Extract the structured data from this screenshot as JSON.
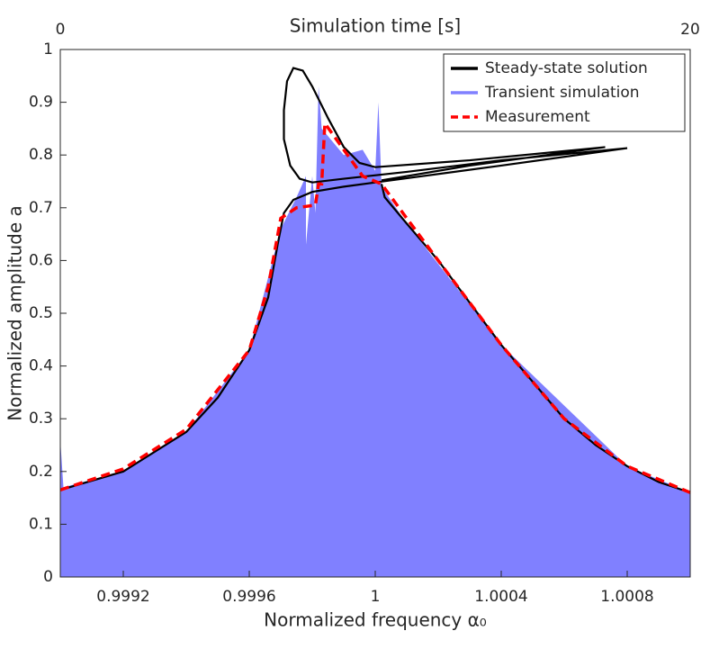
{
  "chart_data": {
    "type": "line",
    "title": "Simulation time [s]",
    "xlabel": "Normalized frequency α₀",
    "ylabel": "Normalized amplitude a",
    "xlim": [
      0.999,
      1.001
    ],
    "xticks": [
      0.9992,
      0.9996,
      1,
      1.0004,
      1.0008
    ],
    "ylim": [
      0,
      1
    ],
    "yticks": [
      0,
      0.1,
      0.2,
      0.3,
      0.4,
      0.5,
      0.6,
      0.7,
      0.8,
      0.9,
      1
    ],
    "x2lim": [
      0,
      20
    ],
    "x2ticks": [
      0,
      20
    ],
    "legend": "upper right",
    "series": [
      {
        "name": "Transient simulation",
        "color": "#8080ff",
        "fill": true,
        "x": [
          0.999,
          0.99901,
          0.9992,
          0.9994,
          0.9996,
          0.9997,
          0.99975,
          0.99978,
          0.99978,
          0.9998,
          0.99981,
          0.99982,
          0.99983,
          0.9999,
          0.99996,
          1.0,
          1.00001,
          1.00002,
          1.0001,
          1.0004,
          1.0008,
          1.001
        ],
        "values": [
          0.26,
          0.17,
          0.2,
          0.275,
          0.43,
          0.66,
          0.72,
          0.76,
          0.63,
          0.76,
          0.69,
          0.93,
          0.85,
          0.8,
          0.81,
          0.77,
          0.9,
          0.74,
          0.67,
          0.44,
          0.21,
          0.16
        ]
      },
      {
        "name": "Steady-state solution",
        "color": "#000000",
        "x": [
          0.999,
          0.9992,
          0.9994,
          0.9995,
          0.9996,
          0.99966,
          0.99969,
          0.99971,
          0.99974,
          0.9998,
          0.9999,
          1.0,
          1.0004,
          1.0008,
          1.0004,
          1.0001,
          0.9999,
          0.9998,
          0.99976,
          0.99973,
          0.99971,
          0.99971,
          0.99972,
          0.99974,
          0.99977,
          0.9998,
          0.99985,
          0.9999,
          0.99995,
          1.0,
          1.0003,
          1.00073,
          1.0003,
          1.00002,
          null,
          1.00002,
          1.00003,
          1.0001,
          1.0002,
          1.0003,
          1.0004,
          1.0005,
          1.0006,
          1.0007,
          1.0008,
          1.0009,
          1.001
        ],
        "values": [
          0.165,
          0.2,
          0.275,
          0.34,
          0.43,
          0.53,
          0.63,
          0.69,
          0.715,
          0.73,
          0.74,
          0.748,
          0.78,
          0.813,
          0.79,
          0.768,
          0.755,
          0.748,
          0.755,
          0.78,
          0.83,
          0.885,
          0.94,
          0.965,
          0.96,
          0.93,
          0.87,
          0.815,
          0.785,
          0.777,
          0.79,
          0.815,
          0.78,
          0.752,
          null,
          0.745,
          0.72,
          0.67,
          0.6,
          0.52,
          0.44,
          0.37,
          0.3,
          0.25,
          0.21,
          0.18,
          0.16
        ]
      },
      {
        "name": "Measurement",
        "color": "#ff0000",
        "dashed": true,
        "x": [
          0.999,
          0.9992,
          0.9994,
          0.9996,
          0.99966,
          0.9997,
          0.99975,
          0.99981,
          0.99982,
          0.99983,
          0.99984,
          0.9999,
          0.99996,
          1.0,
          1.00002,
          1.0001,
          1.0002,
          1.0004,
          1.0006,
          1.0008,
          1.001
        ],
        "values": [
          0.165,
          0.205,
          0.28,
          0.43,
          0.55,
          0.68,
          0.7,
          0.705,
          0.745,
          0.745,
          0.86,
          0.81,
          0.76,
          0.75,
          0.745,
          0.68,
          0.6,
          0.44,
          0.3,
          0.21,
          0.16
        ]
      }
    ]
  }
}
